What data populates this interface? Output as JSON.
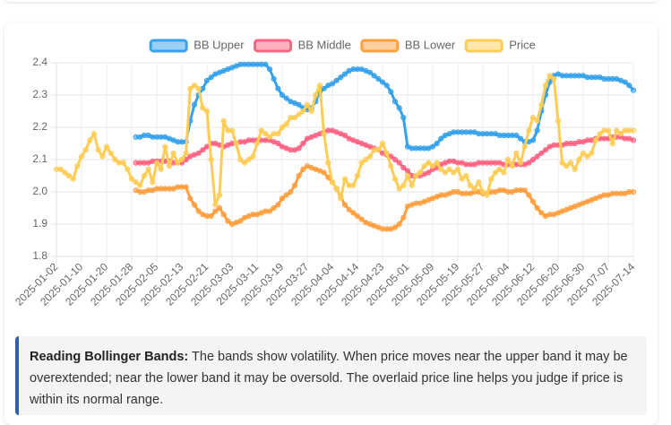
{
  "chart_data": {
    "type": "line",
    "categories": [
      "2025-01-02",
      null,
      null,
      null,
      null,
      null,
      "2025-01-10",
      null,
      null,
      null,
      null,
      null,
      "2025-01-20",
      null,
      null,
      null,
      null,
      null,
      "2025-01-28",
      null,
      null,
      null,
      null,
      null,
      "2025-02-05",
      null,
      null,
      null,
      null,
      null,
      "2025-02-13",
      null,
      null,
      null,
      null,
      null,
      "2025-02-21",
      null,
      null,
      null,
      null,
      null,
      "2025-03-03",
      null,
      null,
      null,
      null,
      null,
      "2025-03-11",
      null,
      null,
      null,
      null,
      null,
      "2025-03-19",
      null,
      null,
      null,
      null,
      null,
      "2025-03-27",
      null,
      null,
      null,
      null,
      null,
      "2025-04-04",
      null,
      null,
      null,
      null,
      null,
      "2025-04-14",
      null,
      null,
      null,
      null,
      null,
      "2025-04-23",
      null,
      null,
      null,
      null,
      null,
      "2025-05-01",
      null,
      null,
      null,
      null,
      null,
      "2025-05-09",
      null,
      null,
      null,
      null,
      null,
      "2025-05-19",
      null,
      null,
      null,
      null,
      null,
      "2025-05-27",
      null,
      null,
      null,
      null,
      null,
      "2025-06-04",
      null,
      null,
      null,
      null,
      null,
      "2025-06-12",
      null,
      null,
      null,
      null,
      null,
      "2025-06-20",
      null,
      null,
      null,
      null,
      null,
      "2025-06-30",
      null,
      null,
      null,
      null,
      null,
      "2025-07-07",
      null,
      null,
      null,
      null,
      null,
      "2025-07-14"
    ],
    "series": [
      {
        "name": "BB Upper",
        "color": "#36a2eb",
        "values": [
          null,
          null,
          null,
          null,
          null,
          null,
          null,
          null,
          null,
          null,
          null,
          null,
          null,
          null,
          null,
          null,
          null,
          null,
          null,
          2.17,
          2.17,
          2.175,
          2.175,
          2.17,
          2.17,
          2.17,
          2.17,
          2.165,
          2.16,
          2.155,
          2.155,
          2.155,
          2.22,
          2.27,
          2.3,
          2.32,
          2.345,
          2.355,
          2.365,
          2.37,
          2.375,
          2.38,
          2.385,
          2.39,
          2.395,
          2.395,
          2.395,
          2.395,
          2.395,
          2.395,
          2.395,
          2.38,
          2.35,
          2.32,
          2.3,
          2.29,
          2.28,
          2.275,
          2.27,
          2.26,
          2.255,
          2.26,
          2.28,
          2.31,
          2.32,
          2.33,
          2.335,
          2.345,
          2.355,
          2.365,
          2.375,
          2.38,
          2.38,
          2.38,
          2.375,
          2.37,
          2.36,
          2.35,
          2.34,
          2.33,
          2.31,
          2.28,
          2.26,
          2.23,
          2.14,
          2.135,
          2.135,
          2.135,
          2.135,
          2.135,
          2.14,
          2.15,
          2.165,
          2.175,
          2.18,
          2.185,
          2.185,
          2.185,
          2.185,
          2.185,
          2.185,
          2.18,
          2.18,
          2.18,
          2.18,
          2.18,
          2.175,
          2.175,
          2.175,
          2.175,
          2.175,
          2.165,
          2.155,
          2.155,
          2.16,
          2.19,
          2.25,
          2.3,
          2.34,
          2.36,
          2.365,
          2.36,
          2.36,
          2.36,
          2.36,
          2.36,
          2.36,
          2.355,
          2.355,
          2.355,
          2.355,
          2.35,
          2.35,
          2.35,
          2.35,
          2.345,
          2.34,
          2.33,
          2.315
        ]
      },
      {
        "name": "BB Middle",
        "color": "#ff6384",
        "values": [
          null,
          null,
          null,
          null,
          null,
          null,
          null,
          null,
          null,
          null,
          null,
          null,
          null,
          null,
          null,
          null,
          null,
          null,
          null,
          2.09,
          2.09,
          2.09,
          2.09,
          2.095,
          2.095,
          2.095,
          2.095,
          2.095,
          2.09,
          2.09,
          2.09,
          2.1,
          2.11,
          2.115,
          2.12,
          2.13,
          2.14,
          2.15,
          2.15,
          2.145,
          2.14,
          2.145,
          2.15,
          2.15,
          2.155,
          2.155,
          2.16,
          2.16,
          2.16,
          2.16,
          2.16,
          2.16,
          2.155,
          2.15,
          2.14,
          2.135,
          2.13,
          2.13,
          2.135,
          2.15,
          2.165,
          2.17,
          2.175,
          2.18,
          2.185,
          2.19,
          2.19,
          2.185,
          2.18,
          2.175,
          2.165,
          2.16,
          2.155,
          2.15,
          2.145,
          2.14,
          2.135,
          2.13,
          2.12,
          2.115,
          2.11,
          2.1,
          2.09,
          2.075,
          2.065,
          2.05,
          2.05,
          2.05,
          2.055,
          2.06,
          2.07,
          2.075,
          2.085,
          2.09,
          2.095,
          2.095,
          2.09,
          2.09,
          2.085,
          2.085,
          2.085,
          2.09,
          2.09,
          2.09,
          2.09,
          2.09,
          2.09,
          2.085,
          2.085,
          2.085,
          2.085,
          2.085,
          2.085,
          2.09,
          2.1,
          2.11,
          2.12,
          2.13,
          2.14,
          2.145,
          2.145,
          2.145,
          2.15,
          2.15,
          2.15,
          2.155,
          2.155,
          2.16,
          2.16,
          2.165,
          2.165,
          2.165,
          2.165,
          2.17,
          2.17,
          2.17,
          2.165,
          2.165,
          2.16
        ]
      },
      {
        "name": "BB Lower",
        "color": "#ff9f40",
        "values": [
          null,
          null,
          null,
          null,
          null,
          null,
          null,
          null,
          null,
          null,
          null,
          null,
          null,
          null,
          null,
          null,
          null,
          null,
          null,
          2.005,
          2.0,
          2.0,
          2.005,
          2.005,
          2.01,
          2.01,
          2.01,
          2.01,
          2.01,
          2.015,
          2.015,
          2.015,
          1.98,
          1.96,
          1.94,
          1.93,
          1.925,
          1.925,
          1.94,
          1.95,
          1.93,
          1.91,
          1.9,
          1.905,
          1.91,
          1.92,
          1.925,
          1.93,
          1.93,
          1.935,
          1.94,
          1.94,
          1.95,
          1.96,
          1.98,
          1.99,
          2.0,
          2.02,
          2.05,
          2.07,
          2.08,
          2.075,
          2.07,
          2.065,
          2.06,
          2.045,
          2.03,
          2.01,
          1.985,
          1.96,
          1.945,
          1.935,
          1.925,
          1.915,
          1.905,
          1.9,
          1.895,
          1.89,
          1.885,
          1.885,
          1.885,
          1.89,
          1.9,
          1.92,
          1.955,
          1.96,
          1.965,
          1.965,
          1.97,
          1.975,
          1.98,
          1.985,
          1.99,
          1.99,
          1.995,
          2.0,
          2.0,
          1.995,
          1.995,
          1.995,
          2.0,
          2.0,
          1.995,
          1.995,
          2.0,
          2.0,
          2.005,
          2.005,
          2.0,
          2.0,
          2.005,
          2.005,
          2.005,
          1.99,
          1.97,
          1.95,
          1.935,
          1.925,
          1.93,
          1.93,
          1.935,
          1.94,
          1.945,
          1.95,
          1.955,
          1.96,
          1.965,
          1.97,
          1.975,
          1.98,
          1.985,
          1.99,
          1.99,
          1.995,
          1.995,
          1.995,
          1.995,
          2.0,
          2.0
        ]
      },
      {
        "name": "Price",
        "color": "#ffcd56",
        "values": [
          2.07,
          2.07,
          2.06,
          2.05,
          2.04,
          2.08,
          2.11,
          2.13,
          2.16,
          2.18,
          2.13,
          2.11,
          2.14,
          2.12,
          2.1,
          2.09,
          2.09,
          2.07,
          2.04,
          2.03,
          2.02,
          2.05,
          2.07,
          2.03,
          2.09,
          2.07,
          2.14,
          2.08,
          2.12,
          2.09,
          2.1,
          2.12,
          2.32,
          2.33,
          2.32,
          2.26,
          2.25,
          2.1,
          1.96,
          1.99,
          2.22,
          2.19,
          2.19,
          2.15,
          2.1,
          2.09,
          2.1,
          2.11,
          2.15,
          2.19,
          2.18,
          2.17,
          2.18,
          2.18,
          2.2,
          2.21,
          2.23,
          2.23,
          2.24,
          2.25,
          2.27,
          2.25,
          2.3,
          2.33,
          2.18,
          2.09,
          2.03,
          2.01,
          1.98,
          2.04,
          2.02,
          2.02,
          2.05,
          2.09,
          2.1,
          2.11,
          2.13,
          2.13,
          2.15,
          2.12,
          2.08,
          2.04,
          2.01,
          2.02,
          2.05,
          2.02,
          2.05,
          2.06,
          2.08,
          2.09,
          2.08,
          2.09,
          2.07,
          2.06,
          2.07,
          2.06,
          2.07,
          2.04,
          2.05,
          2.02,
          2.01,
          2.03,
          2.0,
          1.99,
          2.04,
          2.06,
          2.07,
          2.06,
          2.1,
          2.08,
          2.12,
          2.09,
          2.14,
          2.19,
          2.23,
          2.22,
          2.27,
          2.33,
          2.36,
          2.35,
          2.22,
          2.09,
          2.08,
          2.09,
          2.07,
          2.1,
          2.12,
          2.11,
          2.12,
          2.16,
          2.18,
          2.19,
          2.19,
          2.15,
          2.19,
          2.18,
          2.19,
          2.19,
          2.19
        ]
      }
    ],
    "ylim": [
      1.8,
      2.4
    ],
    "yticks": [
      1.8,
      1.9,
      {
        "value": 2,
        "label": "2.0"
      },
      2.1,
      2.2,
      2.3,
      2.4
    ],
    "grid": true,
    "legend": "top"
  },
  "note": {
    "title": "Reading Bollinger Bands:",
    "text": "The bands show volatility. When price moves near the upper band it may be overextended; near the lower band it may be oversold. The overlaid price line helps you judge if price is within its normal range."
  }
}
